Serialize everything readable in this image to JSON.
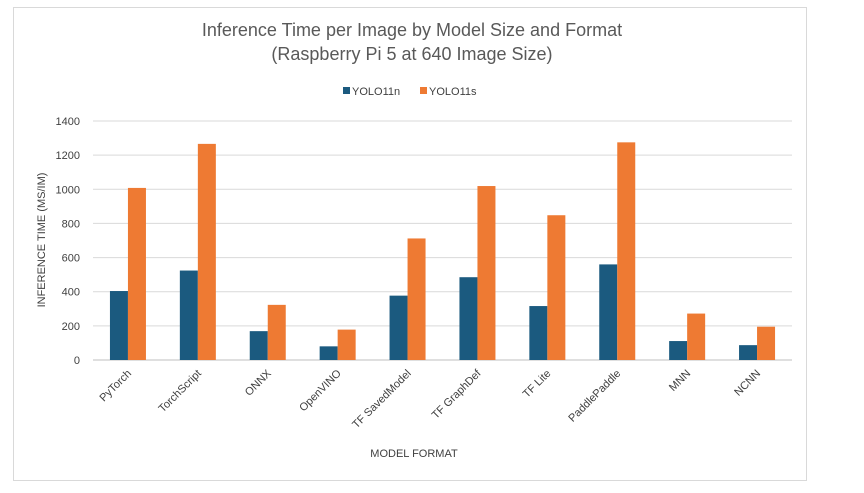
{
  "chart_data": {
    "type": "bar",
    "title": "Inference Time per Image by Model Size and Format",
    "subtitle": "(Raspberry Pi 5 at 640 Image Size)",
    "xlabel": "MODEL FORMAT",
    "ylabel": "INFERENCE TIME (MS/IM)",
    "ylim": [
      0,
      1400
    ],
    "yticks": [
      "0",
      "200",
      "400",
      "600",
      "800",
      "1000",
      "1200",
      "1400"
    ],
    "grid": true,
    "legend_position": "top",
    "categories": [
      "PyTorch",
      "TorchScript",
      "ONNX",
      "OpenVINO",
      "TF SavedModel",
      "TF GraphDef",
      "TF Lite",
      "PaddlePaddle",
      "MNN",
      "NCNN"
    ],
    "series": [
      {
        "name": "YOLO11n",
        "color": "#1b5a7f",
        "values": [
          404,
          524,
          169,
          80,
          377,
          485,
          316,
          560,
          111,
          87
        ]
      },
      {
        "name": "YOLO11s",
        "color": "#ee7a33",
        "values": [
          1008,
          1266,
          323,
          178,
          712,
          1019,
          848,
          1275,
          272,
          195
        ]
      }
    ]
  }
}
